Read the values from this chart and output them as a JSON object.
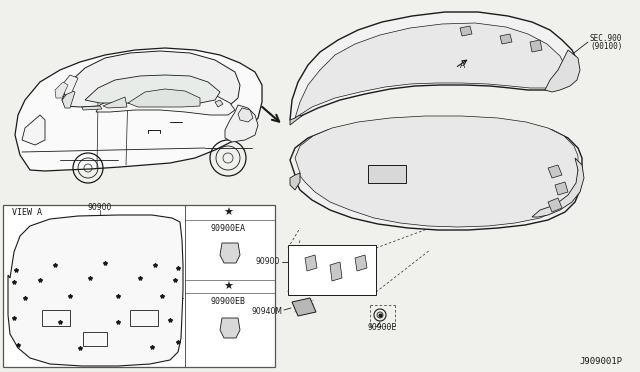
{
  "bg_color": "#f0f0ec",
  "line_color": "#1a1a1a",
  "dashed_color": "#444444",
  "white": "#ffffff",
  "part_numbers": {
    "main": "90900",
    "ea": "90900EA",
    "eb": "90900EB",
    "e": "90900E",
    "m": "90940M",
    "sec_line1": "SEC.900",
    "sec_line2": "(90100)"
  },
  "labels": {
    "view_a": "VIEW A",
    "diagram_id": "J909001P",
    "star": "★",
    "label_a": "A"
  }
}
